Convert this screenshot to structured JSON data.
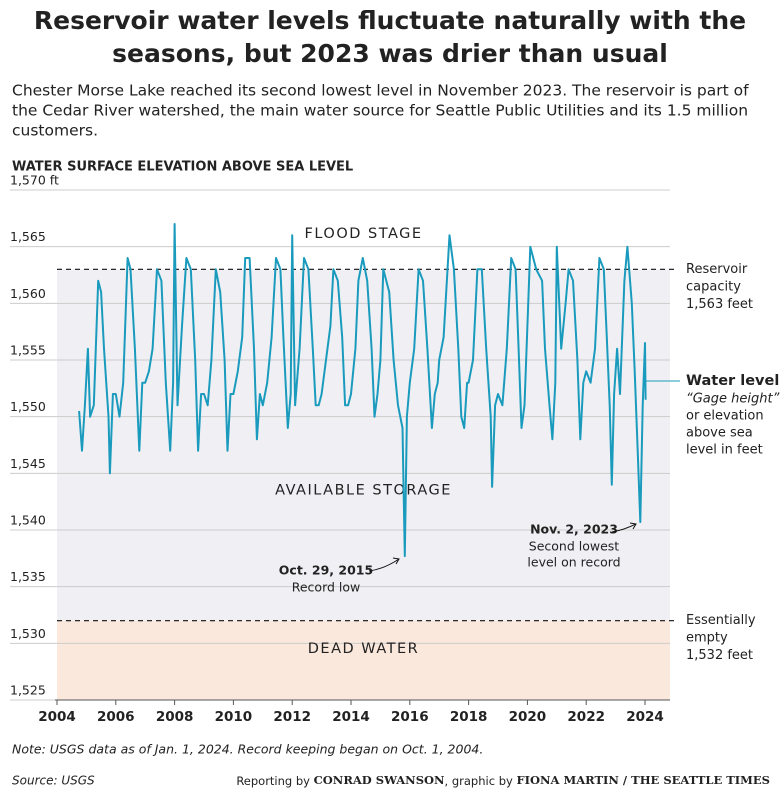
{
  "chart_data": {
    "type": "line",
    "title": [
      "Reservoir water levels fluctuate naturally with the",
      "seasons, but 2023 was drier than usual"
    ],
    "subtitle": [
      "Chester Morse Lake reached its second lowest level in November 2023. The reservoir is part of",
      "the Cedar River watershed, the main water source for Seattle Public Utilities and its 1.5 million",
      "customers."
    ],
    "y_label": "WATER SURFACE ELEVATION ABOVE SEA LEVEL",
    "xlim": [
      2004,
      2024.85
    ],
    "xticks": [
      2004,
      2006,
      2008,
      2010,
      2012,
      2014,
      2016,
      2018,
      2020,
      2022,
      2024
    ],
    "ylim": [
      1525,
      1570
    ],
    "yticks": [
      {
        "value": 1525,
        "label": "1,525"
      },
      {
        "value": 1530,
        "label": "1,530"
      },
      {
        "value": 1535,
        "label": "1,535"
      },
      {
        "value": 1540,
        "label": "1,540"
      },
      {
        "value": 1545,
        "label": "1,545"
      },
      {
        "value": 1550,
        "label": "1,550"
      },
      {
        "value": 1555,
        "label": "1,555"
      },
      {
        "value": 1560,
        "label": "1,560"
      },
      {
        "value": 1565,
        "label": "1,565"
      },
      {
        "value": 1570,
        "label": "1,570 ft"
      }
    ],
    "grid": true,
    "x": [
      2004.75,
      2004.85,
      2004.95,
      2005.05,
      2005.125,
      2005.25,
      2005.4,
      2005.5,
      2005.6,
      2005.75,
      2005.8,
      2005.9,
      2006.0,
      2006.125,
      2006.25,
      2006.4,
      2006.5,
      2006.65,
      2006.8,
      2006.9,
      2007.0,
      2007.125,
      2007.25,
      2007.4,
      2007.55,
      2007.7,
      2007.85,
      2007.95,
      2008.0,
      2008.1,
      2008.25,
      2008.4,
      2008.55,
      2008.7,
      2008.8,
      2008.9,
      2009.0,
      2009.125,
      2009.25,
      2009.4,
      2009.55,
      2009.7,
      2009.8,
      2009.9,
      2010.0,
      2010.15,
      2010.3,
      2010.4,
      2010.55,
      2010.7,
      2010.8,
      2010.9,
      2011.0,
      2011.15,
      2011.3,
      2011.45,
      2011.6,
      2011.7,
      2011.85,
      2011.95,
      2012.0,
      2012.1,
      2012.25,
      2012.4,
      2012.55,
      2012.7,
      2012.8,
      2012.9,
      2013.0,
      2013.15,
      2013.3,
      2013.4,
      2013.55,
      2013.7,
      2013.8,
      2013.9,
      2014.0,
      2014.15,
      2014.25,
      2014.4,
      2014.55,
      2014.7,
      2014.8,
      2014.9,
      2015.0,
      2015.1,
      2015.3,
      2015.45,
      2015.6,
      2015.75,
      2015.83,
      2015.9,
      2016.0,
      2016.15,
      2016.3,
      2016.45,
      2016.6,
      2016.75,
      2016.85,
      2016.95,
      2017.0,
      2017.15,
      2017.35,
      2017.5,
      2017.65,
      2017.75,
      2017.85,
      2017.95,
      2018.0,
      2018.15,
      2018.3,
      2018.45,
      2018.6,
      2018.75,
      2018.8,
      2018.9,
      2019.0,
      2019.15,
      2019.3,
      2019.45,
      2019.6,
      2019.7,
      2019.8,
      2019.9,
      2020.0,
      2020.1,
      2020.3,
      2020.5,
      2020.6,
      2020.75,
      2020.85,
      2020.95,
      2021.0,
      2021.15,
      2021.3,
      2021.4,
      2021.55,
      2021.7,
      2021.8,
      2021.9,
      2022.0,
      2022.15,
      2022.3,
      2022.45,
      2022.6,
      2022.7,
      2022.8,
      2022.87,
      2022.95,
      2023.05,
      2023.15,
      2023.3,
      2023.4,
      2023.55,
      2023.65,
      2023.75,
      2023.84,
      2023.92,
      2024.0,
      2024.02
    ],
    "series": [
      {
        "name": "Water level",
        "color": "#1a9bbd",
        "values": [
          1550.5,
          1547,
          1551,
          1556,
          1550,
          1551,
          1562,
          1561,
          1556,
          1550,
          1545,
          1552,
          1552,
          1550,
          1553,
          1564,
          1563,
          1556,
          1547,
          1553,
          1553,
          1554,
          1556,
          1563,
          1562,
          1553,
          1547,
          1553,
          1567,
          1551,
          1558,
          1564,
          1563,
          1555,
          1547,
          1552,
          1552,
          1551,
          1555,
          1563,
          1561,
          1555,
          1547,
          1552,
          1552,
          1554,
          1557,
          1564,
          1564,
          1556,
          1548,
          1552,
          1551,
          1553,
          1557,
          1564,
          1563,
          1557,
          1549,
          1552,
          1566,
          1551,
          1556,
          1564,
          1563,
          1556,
          1551,
          1551,
          1552,
          1555,
          1558,
          1563,
          1562,
          1557,
          1551,
          1551,
          1552,
          1556,
          1562,
          1564,
          1562,
          1556,
          1550,
          1552,
          1555,
          1563,
          1561,
          1555,
          1551,
          1549,
          1537.7,
          1550,
          1553,
          1556,
          1563,
          1562,
          1556,
          1549,
          1552,
          1553,
          1555,
          1557,
          1566,
          1563,
          1556,
          1550,
          1549,
          1553,
          1553,
          1555,
          1563,
          1563,
          1556,
          1550,
          1543.8,
          1551,
          1552,
          1551,
          1556,
          1564,
          1563,
          1556,
          1549,
          1551,
          1558,
          1565,
          1563,
          1562,
          1556,
          1551,
          1548,
          1553,
          1565,
          1556,
          1560,
          1563,
          1562,
          1555,
          1548,
          1553,
          1554,
          1553,
          1556,
          1564,
          1563,
          1557,
          1551,
          1544,
          1552,
          1556,
          1552,
          1562,
          1565,
          1560,
          1554,
          1547,
          1540.7,
          1551,
          1556.5,
          1551.5
        ],
        "description": [
          "“Gage height”",
          "or elevation",
          "above sea",
          "level in feet"
        ]
      }
    ],
    "reference_lines": [
      {
        "value": 1563,
        "label": [
          "Reservoir",
          "capacity",
          "1,563 feet"
        ]
      },
      {
        "value": 1532,
        "label": [
          "Essentially",
          "empty",
          "1,532 feet"
        ]
      }
    ],
    "regions": [
      "FLOOD STAGE",
      "AVAILABLE STORAGE",
      "DEAD WATER"
    ],
    "annotations": [
      {
        "title": "Oct. 29, 2015",
        "text": [
          "Record low"
        ]
      },
      {
        "title": "Nov. 2, 2023",
        "text": [
          "Second lowest",
          "level on record"
        ]
      }
    ],
    "note": "Note: USGS data as of Jan. 1, 2024. Record keeping began on Oct. 1, 2004.",
    "source": "Source: USGS",
    "credit": [
      "Reporting by ",
      "CONRAD SWANSON",
      ", graphic by ",
      "FIONA MARTIN / THE SEATTLE TIMES"
    ]
  }
}
